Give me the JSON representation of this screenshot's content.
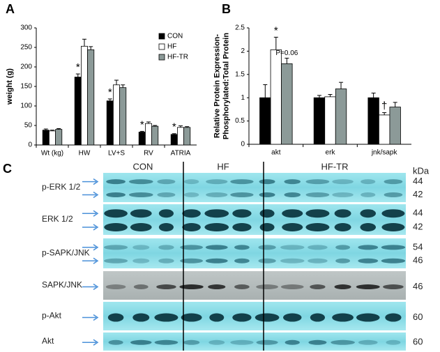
{
  "chart_data": [
    {
      "type": "bar",
      "panel": "A",
      "y_label": [
        "weight (g)"
      ],
      "categories": [
        "Wt (kg)",
        "HW",
        "LV+S",
        "RV",
        "ATRIA"
      ],
      "series": [
        {
          "name": "CON",
          "color": "#000000",
          "values": [
            38,
            174,
            113,
            33,
            27
          ],
          "errors": [
            3,
            8,
            5,
            2,
            2
          ]
        },
        {
          "name": "HF",
          "color": "#ffffff",
          "values": [
            36,
            253,
            154,
            55,
            45
          ],
          "errors": [
            2,
            18,
            12,
            4,
            4
          ]
        },
        {
          "name": "HF-TR",
          "color": "#8c9a98",
          "values": [
            40,
            244,
            147,
            48,
            45
          ],
          "errors": [
            2,
            8,
            7,
            2,
            2
          ]
        }
      ],
      "ylim": [
        0,
        300
      ],
      "yticks": [
        0,
        50,
        100,
        150,
        200,
        250,
        300
      ],
      "annotations": [
        {
          "text": "*",
          "category": "HW",
          "series": "CON"
        },
        {
          "text": "*",
          "category": "LV+S",
          "series": "CON"
        },
        {
          "text": "*",
          "category": "RV",
          "series": "CON"
        },
        {
          "text": "*",
          "category": "ATRIA",
          "series": "CON"
        }
      ],
      "legend": "top-right"
    },
    {
      "type": "bar",
      "panel": "B",
      "y_label": [
        "Relative Protein Expression-",
        "Phosphorylated:Total Protein"
      ],
      "categories": [
        "akt",
        "erk",
        "jnk/sapk"
      ],
      "series": [
        {
          "name": "CON",
          "color": "#000000",
          "values": [
            1,
            1,
            1
          ],
          "errors": [
            0.28,
            0.05,
            0.1
          ]
        },
        {
          "name": "HF",
          "color": "#ffffff",
          "values": [
            2.03,
            1.02,
            0.63
          ],
          "errors": [
            0.27,
            0.05,
            0.05
          ]
        },
        {
          "name": "HF-TR",
          "color": "#8c9a98",
          "values": [
            1.73,
            1.19,
            0.8
          ],
          "errors": [
            0.12,
            0.14,
            0.1
          ]
        }
      ],
      "ylim": [
        0,
        2.5
      ],
      "yticks": [
        0,
        0.5,
        1,
        1.5,
        2,
        2.5
      ],
      "annotations": [
        {
          "text": "*",
          "category": "akt",
          "series": "HF"
        },
        {
          "text": "P=0.06",
          "category": "akt",
          "series": "HF-TR"
        },
        {
          "text": "†",
          "category": "jnk/sapk",
          "series": "HF"
        }
      ]
    }
  ],
  "blot": {
    "panel": "C",
    "groups": [
      "CON",
      "HF",
      "HF-TR"
    ],
    "unit": "kDa",
    "rows": [
      {
        "label": "p-ERK 1/2",
        "sizes": [
          "44",
          "42"
        ]
      },
      {
        "label": "ERK 1/2",
        "sizes": [
          "44",
          "42"
        ]
      },
      {
        "label": "p-SAPK/JNK",
        "sizes": [
          "54",
          "46"
        ]
      },
      {
        "label": "SAPK/JNK",
        "sizes": [
          "46"
        ]
      },
      {
        "label": "p-Akt",
        "sizes": [
          "60"
        ]
      },
      {
        "label": "Akt",
        "sizes": [
          "60"
        ]
      }
    ]
  }
}
